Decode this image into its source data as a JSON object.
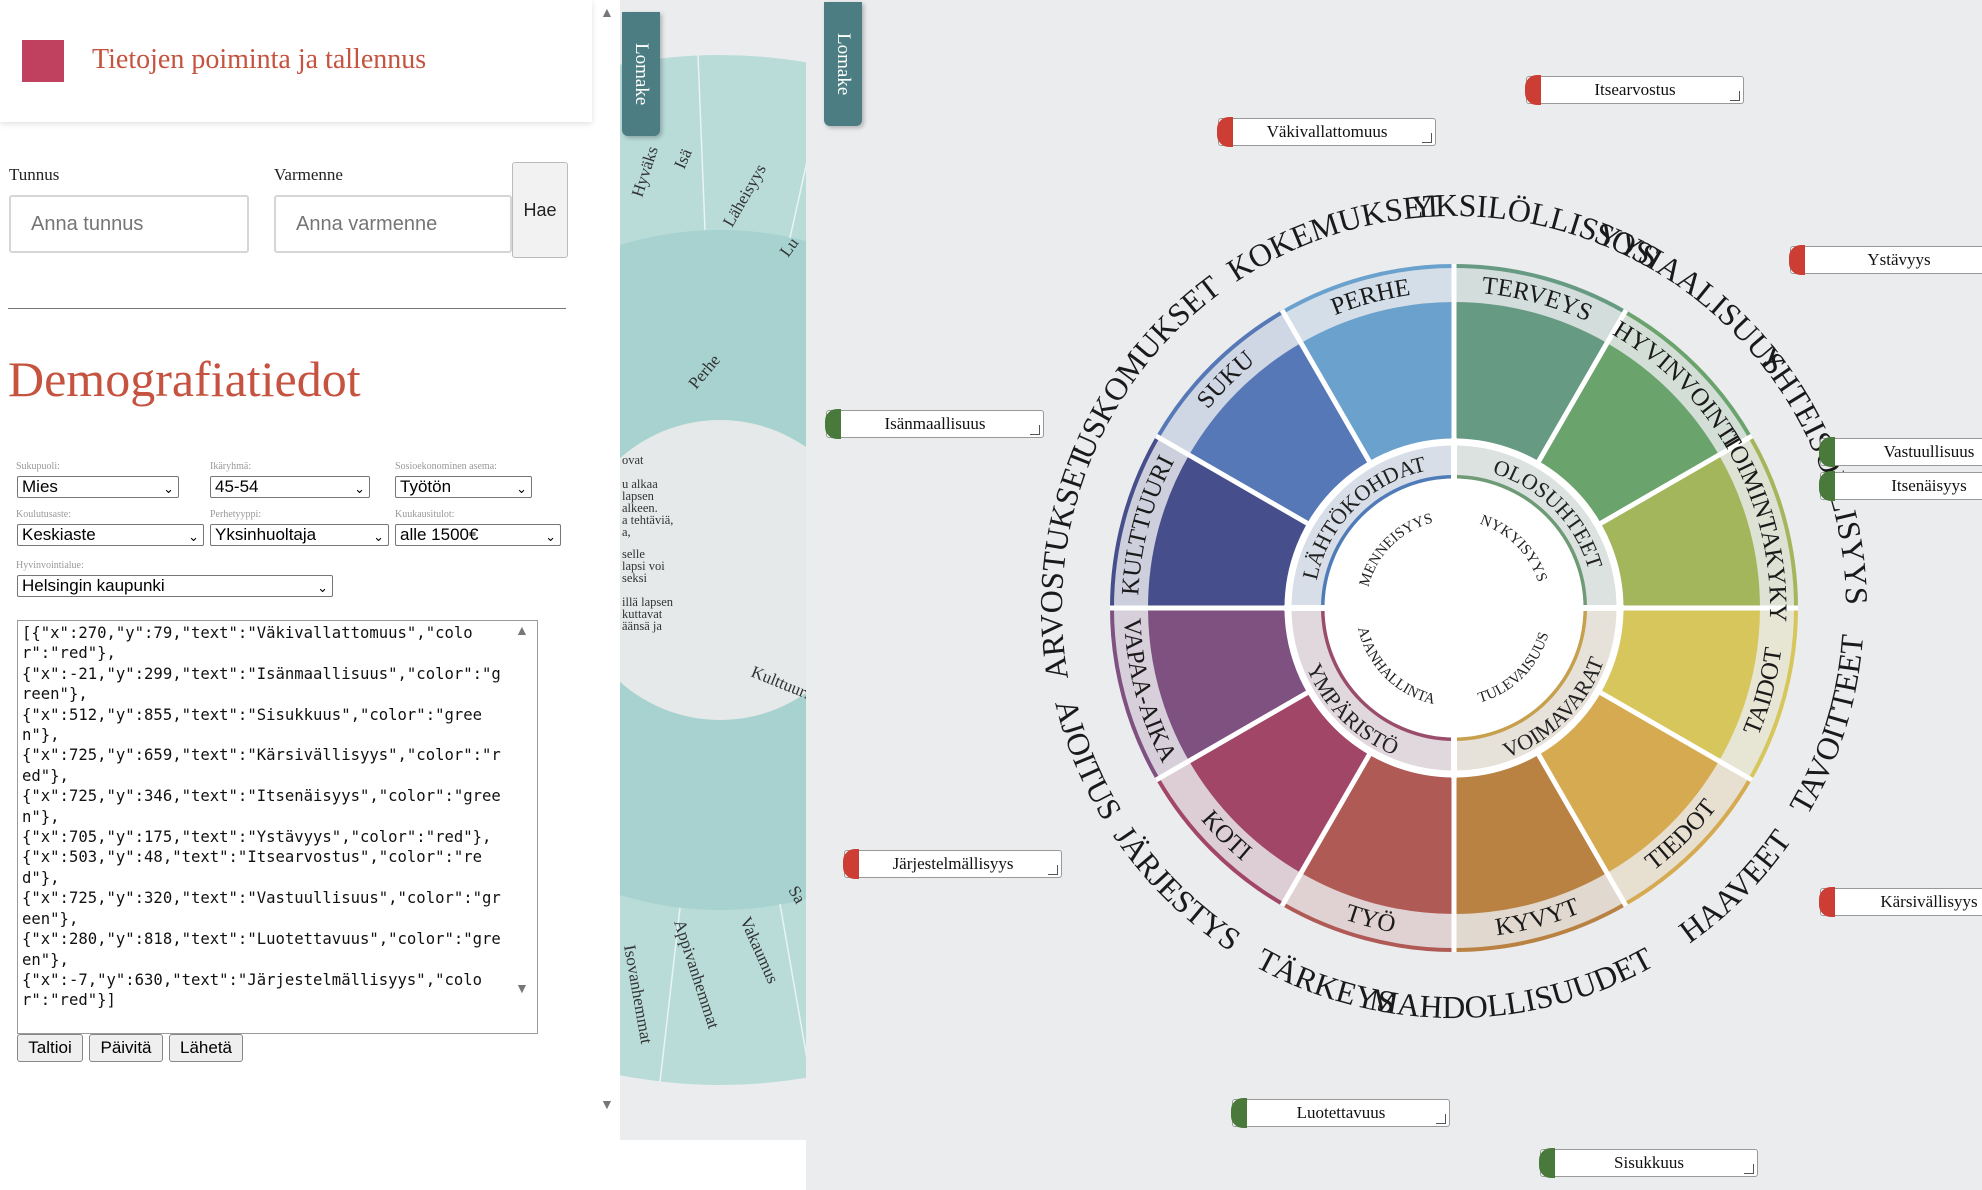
{
  "panel": {
    "title": "Tietojen poiminta ja tallennus",
    "tunnus_label": "Tunnus",
    "tunnus_placeholder": "Anna tunnus",
    "varmenne_label": "Varmenne",
    "varmenne_placeholder": "Anna varmenne",
    "hae_label": "Hae",
    "heading": "Demografiatiedot",
    "fields": {
      "sukupuoli_label": "Sukupuoli:",
      "sukupuoli_value": "Mies",
      "ikaryhma_label": "Ikäryhmä:",
      "ikaryhma_value": "45-54",
      "sosio_label": "Sosioekonominen asema:",
      "sosio_value": "Työtön",
      "koulutus_label": "Koulutusaste:",
      "koulutus_value": "Keskiaste",
      "perhe_label": "Perhetyyppi:",
      "perhe_value": "Yksinhuoltaja",
      "tulot_label": "Kuukausitulot:",
      "tulot_value": "alle 1500€",
      "alue_label": "Hyvinvointialue:",
      "alue_value": "Helsingin kaupunki"
    },
    "json_text": "[{\"x\":270,\"y\":79,\"text\":\"Väkivallattomuus\",\"color\":\"red\"},\n{\"x\":-21,\"y\":299,\"text\":\"Isänmaallisuus\",\"color\":\"green\"},\n{\"x\":512,\"y\":855,\"text\":\"Sisukkuus\",\"color\":\"green\"},\n{\"x\":725,\"y\":659,\"text\":\"Kärsivällisyys\",\"color\":\"red\"},\n{\"x\":725,\"y\":346,\"text\":\"Itsenäisyys\",\"color\":\"green\"},\n{\"x\":705,\"y\":175,\"text\":\"Ystävyys\",\"color\":\"red\"},\n{\"x\":503,\"y\":48,\"text\":\"Itsearvostus\",\"color\":\"red\"},\n{\"x\":725,\"y\":320,\"text\":\"Vastuullisuus\",\"color\":\"green\"},\n{\"x\":280,\"y\":818,\"text\":\"Luotettavuus\",\"color\":\"green\"},\n{\"x\":-7,\"y\":630,\"text\":\"Järjestelmällisyys\",\"color\":\"red\"}]",
    "buttons": {
      "taltioi": "Taltioi",
      "paivita": "Päivitä",
      "laheta": "Lähetä"
    }
  },
  "tabs": {
    "lomake": "Lomake"
  },
  "middle_wheel": {
    "outer_labels": [
      "Hyväks",
      "Isä",
      "Läheisyys",
      "Lu",
      "Sa",
      "Vakaumus",
      "Appivanhemmat",
      "Isovanhemmat"
    ],
    "mid_labels": [
      "Perhe",
      "Kulttuuri"
    ],
    "inner_text": [
      "ovat",
      "u alkaa",
      "lapsen",
      "alkeen.",
      "a tehtäviä,",
      "a,",
      "selle",
      "lapsi voi",
      "seksi",
      "illä lapsen",
      "kuttavat",
      "äänsä ja"
    ]
  },
  "wheel": {
    "inner_quadrants": [
      "MENNEISYYS",
      "NYKYISYYS",
      "TULEVAISUUS",
      "AJANHALLINTA"
    ],
    "ring_labels": [
      "LÄHTÖKOHDAT",
      "OLOSUHTEET",
      "VOIMAVARAT",
      "YMPÄRISTÖ"
    ],
    "segments": [
      {
        "label": "TERVEYS",
        "color": "#679a83"
      },
      {
        "label": "HYVINVOINTI",
        "color": "#6ba36d"
      },
      {
        "label": "TOIMINTAKYKY",
        "color": "#a4b65c"
      },
      {
        "label": "TAIDOT",
        "color": "#d6c65c"
      },
      {
        "label": "TIEDOT",
        "color": "#d6aa50"
      },
      {
        "label": "KYVYT",
        "color": "#b98243"
      },
      {
        "label": "TYÖ",
        "color": "#b05a55"
      },
      {
        "label": "KOTI",
        "color": "#a24668"
      },
      {
        "label": "VAPAA-AIKA",
        "color": "#7e5181"
      },
      {
        "label": "KULTTUURI",
        "color": "#464e8b"
      },
      {
        "label": "SUKU",
        "color": "#5678b7"
      },
      {
        "label": "PERHE",
        "color": "#6aa1cd"
      }
    ],
    "outer_words": [
      "YKSILÖLLISYYS",
      "SOSIAALISUUS",
      "YHTEISÖLLISYYS",
      "TAVOITTEET",
      "HAAVEET",
      "MAHDOLLISUUDET",
      "TÄRKEYS",
      "JÄRJESTYS",
      "AJOITUS",
      "ARVOSTUKSET",
      "USKOMUKSET",
      "KOKEMUKSET"
    ]
  },
  "floating_labels": [
    {
      "text": "Itsearvostus",
      "color": "red"
    },
    {
      "text": "Väkivallattomuus",
      "color": "red"
    },
    {
      "text": "Ystävyys",
      "color": "red"
    },
    {
      "text": "Isänmaallisuus",
      "color": "green"
    },
    {
      "text": "Vastuullisuus",
      "color": "green"
    },
    {
      "text": "Itsenäisyys",
      "color": "green"
    },
    {
      "text": "Järjestelmällisyys",
      "color": "red"
    },
    {
      "text": "Kärsivällisyys",
      "color": "red"
    },
    {
      "text": "Luotettavuus",
      "color": "green"
    },
    {
      "text": "Sisukkuus",
      "color": "green"
    }
  ],
  "colors": {
    "red": "#cc3d33",
    "green": "#4a7a3b",
    "tab": "#4c7d82",
    "title": "#c5533f"
  }
}
